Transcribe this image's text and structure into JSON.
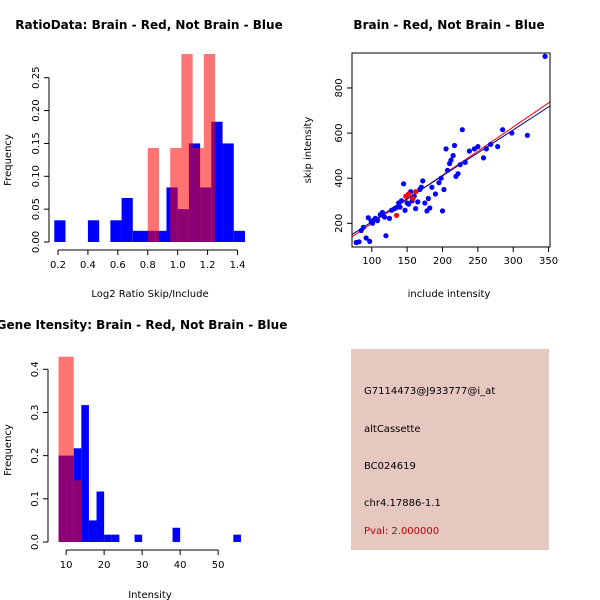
{
  "chart_data": [
    {
      "type": "histogram",
      "title": "RatioData: Brain - Red, Not Brain - Blue",
      "xlabel": "Log2 Ratio Skip/Include",
      "ylabel": "Frequency",
      "xlim": [
        0.2,
        1.45
      ],
      "ylim": [
        0,
        0.28
      ],
      "xticks": [
        "0.2",
        "0.4",
        "0.6",
        "0.8",
        "1.0",
        "1.2",
        "1.4"
      ],
      "yticks": [
        "0.00",
        "0.05",
        "0.10",
        "0.15",
        "0.20",
        "0.25"
      ],
      "series": [
        {
          "name": "Not Brain",
          "color": "#0000ff",
          "bins": [
            {
              "x0": 0.175,
              "x1": 0.25,
              "v": 0.033
            },
            {
              "x0": 0.25,
              "x1": 0.325,
              "v": 0
            },
            {
              "x0": 0.325,
              "x1": 0.4,
              "v": 0
            },
            {
              "x0": 0.4,
              "x1": 0.475,
              "v": 0.033
            },
            {
              "x0": 0.475,
              "x1": 0.55,
              "v": 0
            },
            {
              "x0": 0.55,
              "x1": 0.625,
              "v": 0.033
            },
            {
              "x0": 0.625,
              "x1": 0.7,
              "v": 0.067
            },
            {
              "x0": 0.7,
              "x1": 0.775,
              "v": 0.017
            },
            {
              "x0": 0.775,
              "x1": 0.85,
              "v": 0.017
            },
            {
              "x0": 0.85,
              "x1": 0.925,
              "v": 0.017
            },
            {
              "x0": 0.925,
              "x1": 1.0,
              "v": 0.083
            },
            {
              "x0": 1.0,
              "x1": 1.075,
              "v": 0.05
            },
            {
              "x0": 1.075,
              "x1": 1.15,
              "v": 0.15
            },
            {
              "x0": 1.15,
              "x1": 1.225,
              "v": 0.083
            },
            {
              "x0": 1.225,
              "x1": 1.3,
              "v": 0.183
            },
            {
              "x0": 1.3,
              "x1": 1.375,
              "v": 0.15
            },
            {
              "x0": 1.375,
              "x1": 1.45,
              "v": 0.017
            }
          ]
        },
        {
          "name": "Brain",
          "color": "#ff0000",
          "bins": [
            {
              "x0": 0.8,
              "x1": 0.875,
              "v": 0.143
            },
            {
              "x0": 0.95,
              "x1": 1.025,
              "v": 0.143
            },
            {
              "x0": 1.025,
              "x1": 1.1,
              "v": 0.286
            },
            {
              "x0": 1.1,
              "x1": 1.175,
              "v": 0.143
            },
            {
              "x0": 1.175,
              "x1": 1.25,
              "v": 0.286
            }
          ]
        }
      ]
    },
    {
      "type": "scatter",
      "title": "Brain - Red, Not Brain - Blue",
      "xlabel": "include intensity",
      "ylabel": "skip intensity",
      "xlim": [
        72,
        352
      ],
      "ylim": [
        95,
        955
      ],
      "xticks": [
        100,
        150,
        200,
        250,
        300,
        350
      ],
      "yticks": [
        200,
        400,
        600,
        800
      ],
      "fit_lines": [
        {
          "name": "Brain",
          "color": "#ff0000",
          "x": [
            72,
            352
          ],
          "y": [
            140,
            738
          ]
        },
        {
          "name": "Not Brain",
          "color": "#00008b",
          "x": [
            72,
            352
          ],
          "y": [
            150,
            720
          ]
        }
      ],
      "series": [
        {
          "name": "Not Brain",
          "color": "#0000ff",
          "points": [
            [
              78,
              115
            ],
            [
              82,
              118
            ],
            [
              85,
              168
            ],
            [
              88,
              182
            ],
            [
              92,
              135
            ],
            [
              95,
              225
            ],
            [
              97,
              120
            ],
            [
              99,
              210
            ],
            [
              101,
              200
            ],
            [
              103,
              215
            ],
            [
              105,
              222
            ],
            [
              108,
              212
            ],
            [
              112,
              238
            ],
            [
              115,
              248
            ],
            [
              118,
              228
            ],
            [
              120,
              145
            ],
            [
              125,
              222
            ],
            [
              128,
              258
            ],
            [
              132,
              265
            ],
            [
              135,
              270
            ],
            [
              138,
              290
            ],
            [
              140,
              272
            ],
            [
              142,
              300
            ],
            [
              145,
              375
            ],
            [
              147,
              258
            ],
            [
              150,
              290
            ],
            [
              152,
              285
            ],
            [
              155,
              340
            ],
            [
              157,
              300
            ],
            [
              160,
              320
            ],
            [
              162,
              265
            ],
            [
              165,
              295
            ],
            [
              168,
              350
            ],
            [
              170,
              360
            ],
            [
              172,
              388
            ],
            [
              175,
              290
            ],
            [
              178,
              255
            ],
            [
              180,
              310
            ],
            [
              182,
              268
            ],
            [
              185,
              360
            ],
            [
              190,
              330
            ],
            [
              195,
              380
            ],
            [
              198,
              400
            ],
            [
              200,
              255
            ],
            [
              202,
              350
            ],
            [
              205,
              530
            ],
            [
              207,
              435
            ],
            [
              210,
              465
            ],
            [
              212,
              480
            ],
            [
              215,
              500
            ],
            [
              217,
              545
            ],
            [
              219,
              408
            ],
            [
              222,
              420
            ],
            [
              225,
              460
            ],
            [
              228,
              615
            ],
            [
              232,
              470
            ],
            [
              238,
              520
            ],
            [
              245,
              530
            ],
            [
              250,
              540
            ],
            [
              258,
              490
            ],
            [
              262,
              530
            ],
            [
              268,
              550
            ],
            [
              278,
              540
            ],
            [
              285,
              615
            ],
            [
              298,
              600
            ],
            [
              320,
              590
            ],
            [
              345,
              940
            ]
          ]
        },
        {
          "name": "Brain",
          "color": "#ff0000",
          "points": [
            [
              135,
              235
            ],
            [
              148,
              320
            ],
            [
              152,
              330
            ],
            [
              158,
              310
            ],
            [
              162,
              340
            ]
          ]
        }
      ]
    },
    {
      "type": "histogram",
      "title": "Gene Itensity: Brain - Red, Not Brain - Blue",
      "xlabel": "Intensity",
      "ylabel": "Frequency",
      "xlim": [
        7.6,
        56.8
      ],
      "ylim": [
        0,
        0.44
      ],
      "xticks": [
        "10",
        "20",
        "30",
        "40",
        "50"
      ],
      "yticks": [
        "0.0",
        "0.1",
        "0.2",
        "0.3",
        "0.4"
      ],
      "series": [
        {
          "name": "Not Brain",
          "color": "#0000ff",
          "bins": [
            {
              "x0": 8,
              "x1": 10,
              "v": 0.2
            },
            {
              "x0": 10,
              "x1": 12,
              "v": 0.2
            },
            {
              "x0": 12,
              "x1": 14,
              "v": 0.217
            },
            {
              "x0": 14,
              "x1": 16,
              "v": 0.317
            },
            {
              "x0": 16,
              "x1": 18,
              "v": 0.05
            },
            {
              "x0": 18,
              "x1": 20,
              "v": 0.117
            },
            {
              "x0": 20,
              "x1": 22,
              "v": 0.017
            },
            {
              "x0": 22,
              "x1": 24,
              "v": 0.017
            },
            {
              "x0": 24,
              "x1": 26,
              "v": 0
            },
            {
              "x0": 26,
              "x1": 28,
              "v": 0
            },
            {
              "x0": 28,
              "x1": 30,
              "v": 0.017
            },
            {
              "x0": 30,
              "x1": 32,
              "v": 0
            },
            {
              "x0": 32,
              "x1": 34,
              "v": 0
            },
            {
              "x0": 34,
              "x1": 36,
              "v": 0
            },
            {
              "x0": 36,
              "x1": 38,
              "v": 0
            },
            {
              "x0": 38,
              "x1": 40,
              "v": 0.033
            },
            {
              "x0": 40,
              "x1": 42,
              "v": 0
            },
            {
              "x0": 42,
              "x1": 44,
              "v": 0
            },
            {
              "x0": 44,
              "x1": 46,
              "v": 0
            },
            {
              "x0": 46,
              "x1": 48,
              "v": 0
            },
            {
              "x0": 48,
              "x1": 50,
              "v": 0
            },
            {
              "x0": 50,
              "x1": 52,
              "v": 0
            },
            {
              "x0": 52,
              "x1": 54,
              "v": 0
            },
            {
              "x0": 54,
              "x1": 56,
              "v": 0.017
            }
          ]
        },
        {
          "name": "Brain",
          "color": "#ff0000",
          "bins": [
            {
              "x0": 8,
              "x1": 10,
              "v": 0.429
            },
            {
              "x0": 10,
              "x1": 12,
              "v": 0.429
            },
            {
              "x0": 12,
              "x1": 14,
              "v": 0.143
            }
          ]
        }
      ]
    }
  ],
  "info_panel": {
    "probe_id": "G7114473@J933777@i_at",
    "event_type": "altCassette",
    "accession": "BC024619",
    "location": "chr4.17886-1.1",
    "pval": "Pval: 2.000000",
    "background": "#e6c8c0",
    "pval_color": "#c00000"
  }
}
